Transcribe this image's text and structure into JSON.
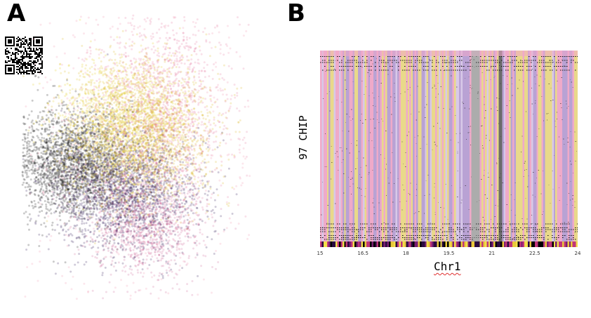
{
  "panels": {
    "a_label": "A",
    "b_label": "B"
  },
  "chart_data": [
    {
      "type": "scatter",
      "panel": "A",
      "title": "",
      "xlabel": "",
      "ylabel": "",
      "grid": false,
      "clusters": [
        {
          "color": "#111111",
          "center": [
            0.22,
            0.52
          ],
          "spread": [
            0.14,
            0.09
          ],
          "count": 2600,
          "alpha": 0.22
        },
        {
          "color": "#2b1050",
          "center": [
            0.46,
            0.62
          ],
          "spread": [
            0.15,
            0.1
          ],
          "count": 2000,
          "alpha": 0.22
        },
        {
          "color": "#d9b420",
          "center": [
            0.52,
            0.42
          ],
          "spread": [
            0.15,
            0.12
          ],
          "count": 2400,
          "alpha": 0.22
        },
        {
          "color": "#e8d23a",
          "center": [
            0.4,
            0.36
          ],
          "spread": [
            0.13,
            0.1
          ],
          "count": 900,
          "alpha": 0.25
        },
        {
          "color": "#e05a8a",
          "center": [
            0.62,
            0.32
          ],
          "spread": [
            0.14,
            0.18
          ],
          "count": 1200,
          "alpha": 0.18
        },
        {
          "color": "#c04080",
          "center": [
            0.55,
            0.74
          ],
          "spread": [
            0.12,
            0.09
          ],
          "count": 900,
          "alpha": 0.18
        },
        {
          "color": "#f2a0b8",
          "center": [
            0.5,
            0.45
          ],
          "spread": [
            0.26,
            0.28
          ],
          "count": 800,
          "alpha": 0.25
        }
      ]
    },
    {
      "type": "heatmap",
      "panel": "B",
      "xlabel": "Chr1",
      "ylabel": "97 CHIP",
      "xlim": [
        15,
        24
      ],
      "xticks": [
        15,
        16.5,
        18,
        19.5,
        21,
        22.5,
        24
      ],
      "rows": 97,
      "palette": [
        "#e9d98a",
        "#efaac9",
        "#b9a2d4",
        "#f0c0d8",
        "#9a9a9a",
        "#d8c9e8"
      ],
      "strip_palette": [
        "#2a0a40",
        "#e9c93a",
        "#c0357a",
        "#000000",
        "#f2df4a",
        "#7a1f72"
      ]
    }
  ]
}
